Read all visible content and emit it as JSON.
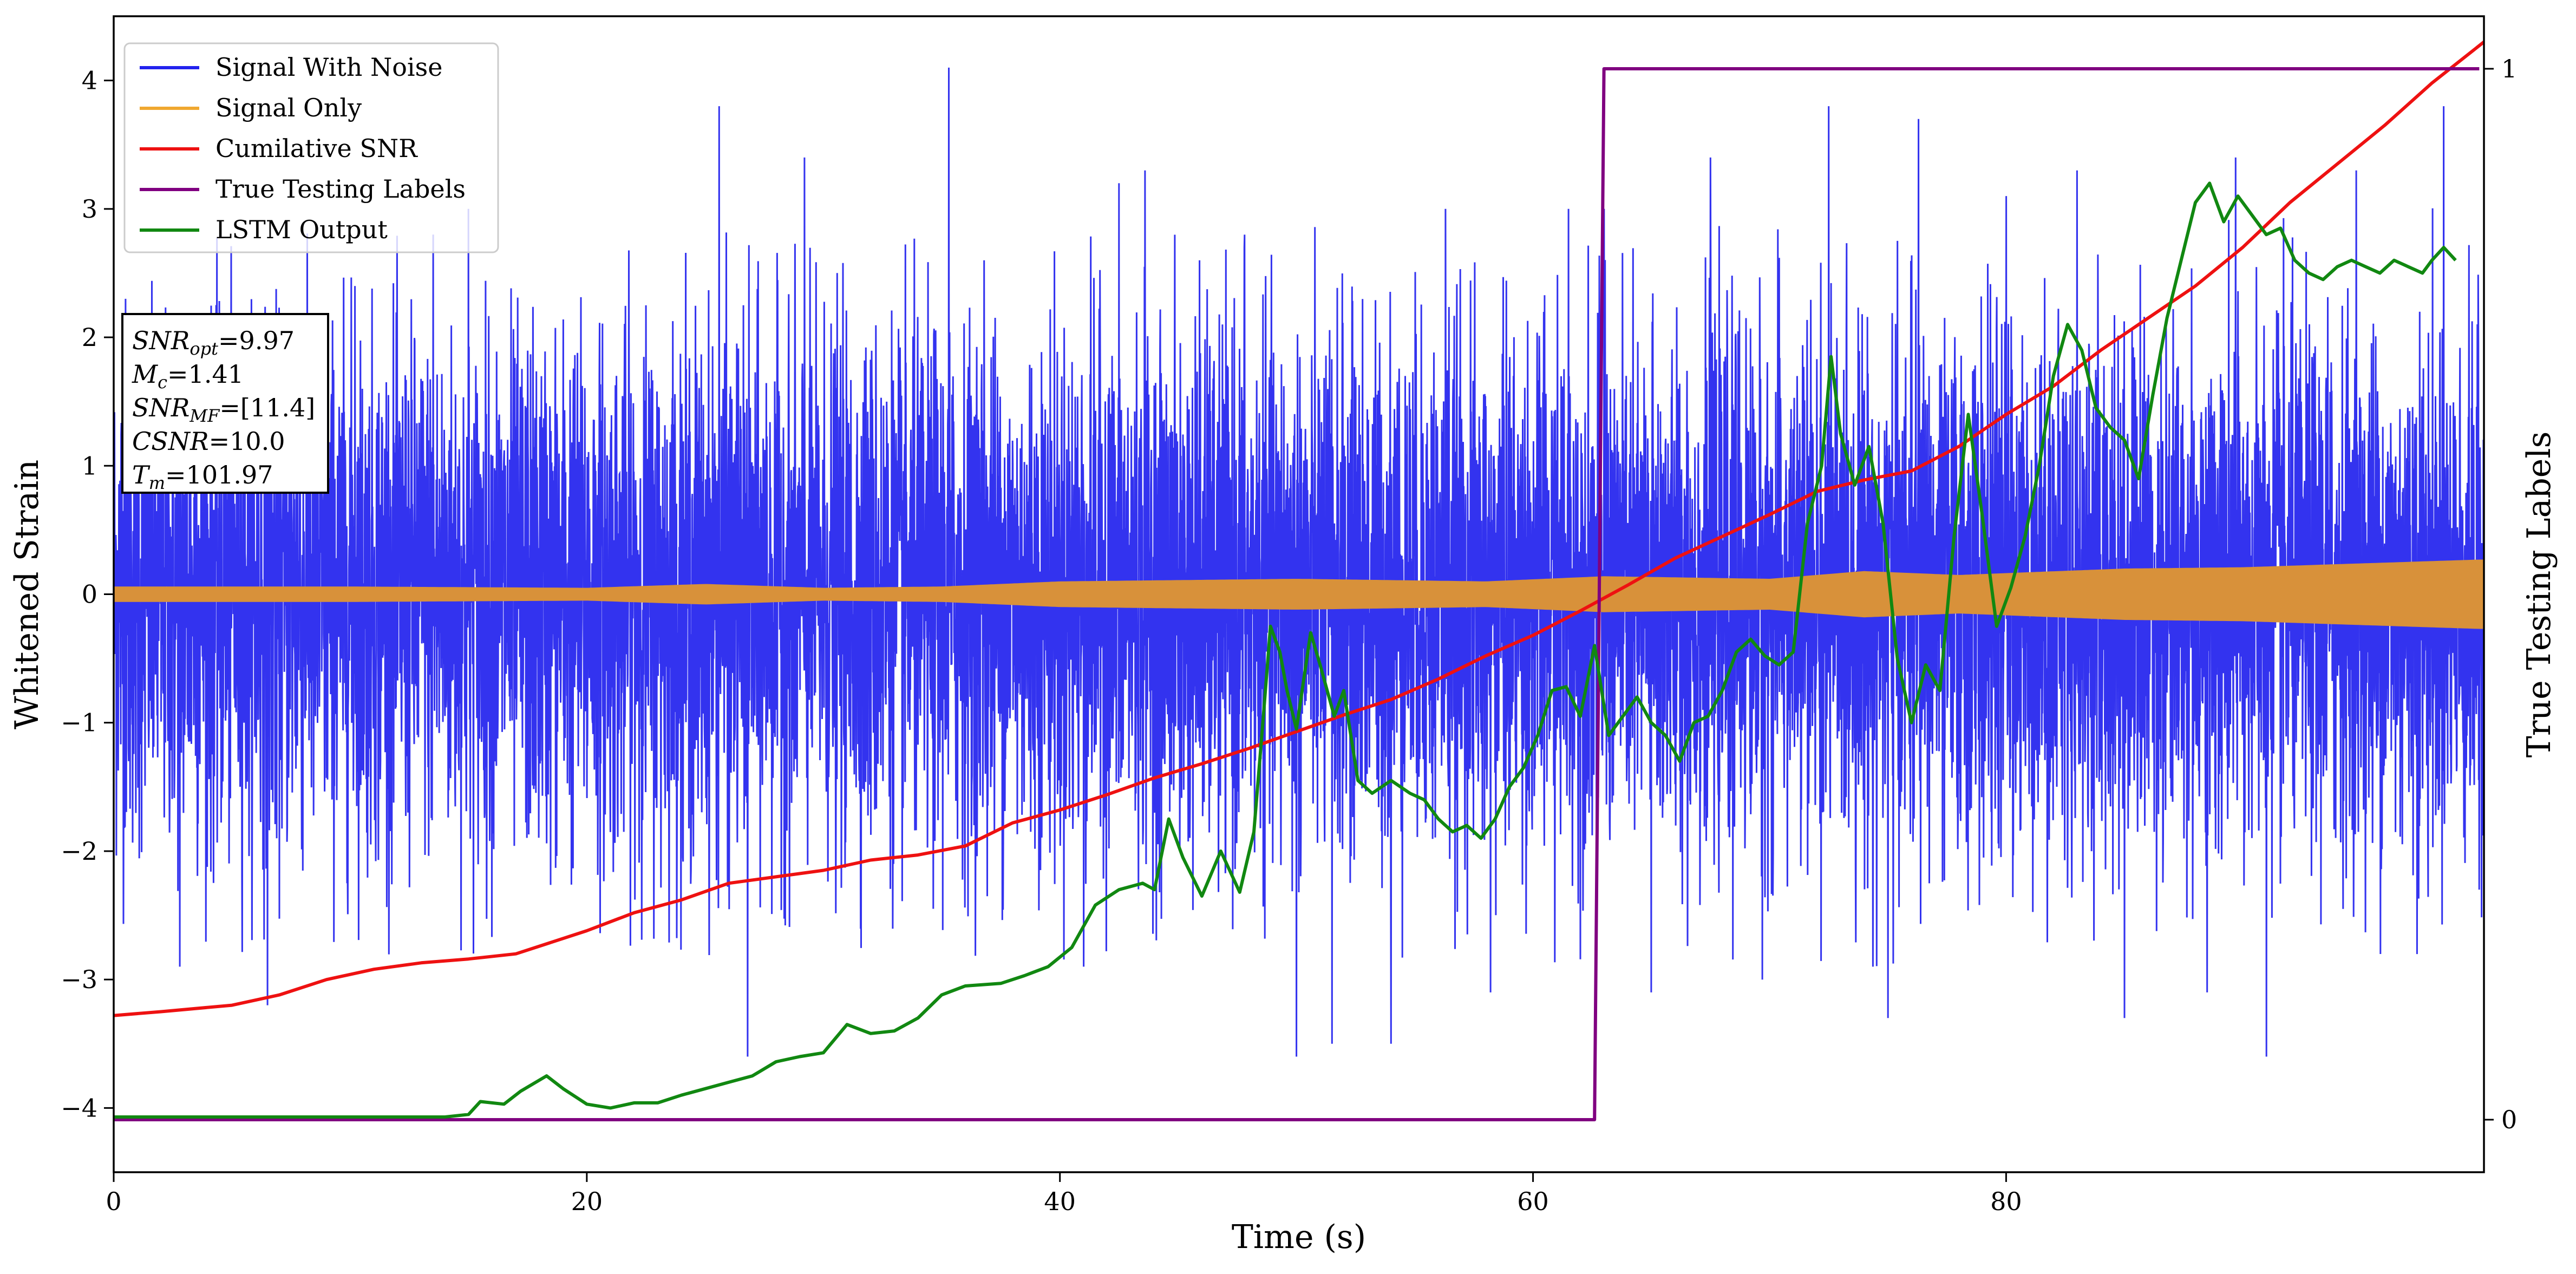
{
  "chart_data": {
    "type": "line",
    "xlabel": "Time (s)",
    "ylabel": "Whitened Strain",
    "y2label": "True Testing Labels",
    "xlim": [
      0,
      100.2
    ],
    "ylim": [
      -4.5,
      4.5
    ],
    "y2lim": [
      -0.05,
      1.05
    ],
    "xticks": [
      0,
      20,
      40,
      60,
      80
    ],
    "yticks": [
      -4,
      -3,
      -2,
      -1,
      0,
      1,
      2,
      3,
      4
    ],
    "y2ticks": [
      0,
      1
    ],
    "grid": false,
    "legend_position": "top-left",
    "series": [
      {
        "name": "Signal With Noise",
        "axis": "left",
        "color": "#2222ee",
        "kind": "noise",
        "sigma": 1.0,
        "peak_points": [
          [
            0.5,
            2.3
          ],
          [
            2.8,
            -2.9
          ],
          [
            3.5,
            2.0
          ],
          [
            6.5,
            -3.2
          ],
          [
            10.2,
            2.4
          ],
          [
            13.5,
            2.8
          ],
          [
            15.0,
            3.0
          ],
          [
            25.6,
            3.8
          ],
          [
            26.8,
            -3.6
          ],
          [
            29.2,
            3.4
          ],
          [
            35.3,
            4.1
          ],
          [
            36.8,
            2.6
          ],
          [
            41.0,
            -2.9
          ],
          [
            42.5,
            3.2
          ],
          [
            43.6,
            3.3
          ],
          [
            45.9,
            2.6
          ],
          [
            47.8,
            2.7
          ],
          [
            50.0,
            -3.6
          ],
          [
            51.5,
            -3.5
          ],
          [
            54.0,
            -3.5
          ],
          [
            56.3,
            3.0
          ],
          [
            58.2,
            -3.1
          ],
          [
            61.5,
            3.0
          ],
          [
            63.0,
            3.0
          ],
          [
            65.0,
            -3.1
          ],
          [
            67.5,
            3.4
          ],
          [
            69.7,
            -3.0
          ],
          [
            72.5,
            3.8
          ],
          [
            75.0,
            -3.3
          ],
          [
            76.3,
            3.7
          ],
          [
            80.0,
            3.1
          ],
          [
            83.0,
            3.3
          ],
          [
            85.0,
            -3.3
          ],
          [
            88.5,
            -3.1
          ],
          [
            89.7,
            3.4
          ],
          [
            91.0,
            -3.6
          ],
          [
            94.8,
            3.3
          ],
          [
            98.5,
            3.8
          ],
          [
            100.0,
            -2.3
          ]
        ]
      },
      {
        "name": "Signal Only",
        "axis": "left",
        "color": "#f0a830",
        "kind": "envelope",
        "envelope": [
          [
            0,
            0.06
          ],
          [
            10,
            0.06
          ],
          [
            20,
            0.05
          ],
          [
            25,
            0.08
          ],
          [
            30,
            0.05
          ],
          [
            35,
            0.06
          ],
          [
            40,
            0.1
          ],
          [
            50,
            0.12
          ],
          [
            58,
            0.1
          ],
          [
            63,
            0.14
          ],
          [
            70,
            0.12
          ],
          [
            74,
            0.18
          ],
          [
            78,
            0.15
          ],
          [
            85,
            0.2
          ],
          [
            90,
            0.21
          ],
          [
            95,
            0.24
          ],
          [
            100,
            0.27
          ]
        ]
      },
      {
        "name": "Cumilative SNR",
        "axis": "left",
        "color": "#ee1111",
        "kind": "line",
        "points": [
          [
            0,
            -3.28
          ],
          [
            2,
            -3.25
          ],
          [
            5,
            -3.2
          ],
          [
            7,
            -3.12
          ],
          [
            9,
            -3.0
          ],
          [
            11,
            -2.92
          ],
          [
            13,
            -2.87
          ],
          [
            15,
            -2.84
          ],
          [
            17,
            -2.8
          ],
          [
            18,
            -2.74
          ],
          [
            20,
            -2.62
          ],
          [
            22,
            -2.48
          ],
          [
            24,
            -2.38
          ],
          [
            26,
            -2.25
          ],
          [
            28,
            -2.2
          ],
          [
            30,
            -2.15
          ],
          [
            32,
            -2.07
          ],
          [
            34,
            -2.03
          ],
          [
            36,
            -1.96
          ],
          [
            38,
            -1.78
          ],
          [
            40,
            -1.68
          ],
          [
            42,
            -1.56
          ],
          [
            44,
            -1.43
          ],
          [
            46,
            -1.32
          ],
          [
            48,
            -1.2
          ],
          [
            50,
            -1.07
          ],
          [
            52,
            -0.94
          ],
          [
            54,
            -0.82
          ],
          [
            56,
            -0.66
          ],
          [
            58,
            -0.48
          ],
          [
            60,
            -0.32
          ],
          [
            62,
            -0.13
          ],
          [
            64,
            0.07
          ],
          [
            66,
            0.28
          ],
          [
            68,
            0.45
          ],
          [
            70,
            0.62
          ],
          [
            72,
            0.8
          ],
          [
            74,
            0.89
          ],
          [
            76,
            0.96
          ],
          [
            78,
            1.15
          ],
          [
            80,
            1.4
          ],
          [
            82,
            1.62
          ],
          [
            84,
            1.9
          ],
          [
            86,
            2.15
          ],
          [
            88,
            2.4
          ],
          [
            90,
            2.7
          ],
          [
            92,
            3.05
          ],
          [
            94,
            3.35
          ],
          [
            96,
            3.65
          ],
          [
            98,
            3.98
          ],
          [
            100.2,
            4.3
          ]
        ]
      },
      {
        "name": "True Testing Labels",
        "axis": "right",
        "color": "#800080",
        "kind": "line",
        "points": [
          [
            0,
            0
          ],
          [
            62.6,
            0
          ],
          [
            63.0,
            1
          ],
          [
            100.0,
            1
          ]
        ]
      },
      {
        "name": "LSTM Output",
        "axis": "left",
        "color": "#118811",
        "kind": "line",
        "points": [
          [
            0,
            -4.07
          ],
          [
            14,
            -4.07
          ],
          [
            15,
            -4.05
          ],
          [
            15.5,
            -3.95
          ],
          [
            16.5,
            -3.97
          ],
          [
            17.2,
            -3.87
          ],
          [
            18.3,
            -3.75
          ],
          [
            19.0,
            -3.85
          ],
          [
            20.0,
            -3.97
          ],
          [
            21.0,
            -4.0
          ],
          [
            22.0,
            -3.96
          ],
          [
            23.0,
            -3.96
          ],
          [
            24.0,
            -3.9
          ],
          [
            25.0,
            -3.85
          ],
          [
            26.0,
            -3.8
          ],
          [
            27.0,
            -3.75
          ],
          [
            28.0,
            -3.64
          ],
          [
            29.0,
            -3.6
          ],
          [
            30.0,
            -3.57
          ],
          [
            31.0,
            -3.35
          ],
          [
            32.0,
            -3.42
          ],
          [
            33.0,
            -3.4
          ],
          [
            34.0,
            -3.3
          ],
          [
            35.0,
            -3.12
          ],
          [
            36.0,
            -3.05
          ],
          [
            37.5,
            -3.03
          ],
          [
            38.5,
            -2.97
          ],
          [
            39.5,
            -2.9
          ],
          [
            40.5,
            -2.75
          ],
          [
            41.5,
            -2.42
          ],
          [
            42.5,
            -2.3
          ],
          [
            43.5,
            -2.25
          ],
          [
            44.0,
            -2.3
          ],
          [
            44.6,
            -1.75
          ],
          [
            45.2,
            -2.05
          ],
          [
            46.0,
            -2.35
          ],
          [
            46.8,
            -2.0
          ],
          [
            47.6,
            -2.32
          ],
          [
            48.2,
            -1.85
          ],
          [
            48.6,
            -0.95
          ],
          [
            48.9,
            -0.25
          ],
          [
            49.3,
            -0.45
          ],
          [
            49.6,
            -0.75
          ],
          [
            50.0,
            -1.05
          ],
          [
            50.6,
            -0.3
          ],
          [
            51.0,
            -0.55
          ],
          [
            51.6,
            -0.95
          ],
          [
            52.0,
            -0.75
          ],
          [
            52.6,
            -1.45
          ],
          [
            53.2,
            -1.55
          ],
          [
            54.0,
            -1.45
          ],
          [
            54.8,
            -1.55
          ],
          [
            55.4,
            -1.6
          ],
          [
            56.0,
            -1.75
          ],
          [
            56.6,
            -1.85
          ],
          [
            57.2,
            -1.8
          ],
          [
            57.8,
            -1.9
          ],
          [
            58.4,
            -1.75
          ],
          [
            59.0,
            -1.5
          ],
          [
            59.6,
            -1.35
          ],
          [
            60.2,
            -1.1
          ],
          [
            60.8,
            -0.75
          ],
          [
            61.4,
            -0.72
          ],
          [
            62.0,
            -0.95
          ],
          [
            62.6,
            -0.4
          ],
          [
            63.2,
            -1.1
          ],
          [
            63.8,
            -0.95
          ],
          [
            64.4,
            -0.8
          ],
          [
            65.0,
            -1.0
          ],
          [
            65.6,
            -1.1
          ],
          [
            66.2,
            -1.3
          ],
          [
            66.8,
            -1.0
          ],
          [
            67.4,
            -0.95
          ],
          [
            68.0,
            -0.75
          ],
          [
            68.6,
            -0.45
          ],
          [
            69.2,
            -0.35
          ],
          [
            69.8,
            -0.48
          ],
          [
            70.4,
            -0.55
          ],
          [
            71.0,
            -0.45
          ],
          [
            71.6,
            0.55
          ],
          [
            72.2,
            1.0
          ],
          [
            72.6,
            1.85
          ],
          [
            73.0,
            1.25
          ],
          [
            73.6,
            0.85
          ],
          [
            74.2,
            1.15
          ],
          [
            74.8,
            0.55
          ],
          [
            75.4,
            -0.5
          ],
          [
            76.0,
            -1.0
          ],
          [
            76.6,
            -0.55
          ],
          [
            77.2,
            -0.75
          ],
          [
            77.8,
            0.45
          ],
          [
            78.4,
            1.4
          ],
          [
            79.0,
            0.6
          ],
          [
            79.6,
            -0.25
          ],
          [
            80.2,
            0.05
          ],
          [
            80.8,
            0.45
          ],
          [
            81.4,
            1.0
          ],
          [
            82.0,
            1.7
          ],
          [
            82.6,
            2.1
          ],
          [
            83.2,
            1.9
          ],
          [
            83.8,
            1.45
          ],
          [
            84.4,
            1.3
          ],
          [
            85.0,
            1.2
          ],
          [
            85.6,
            0.9
          ],
          [
            86.2,
            1.55
          ],
          [
            86.8,
            2.15
          ],
          [
            87.4,
            2.6
          ],
          [
            88.0,
            3.05
          ],
          [
            88.6,
            3.2
          ],
          [
            89.2,
            2.9
          ],
          [
            89.8,
            3.1
          ],
          [
            90.4,
            2.95
          ],
          [
            91.0,
            2.8
          ],
          [
            91.6,
            2.85
          ],
          [
            92.2,
            2.6
          ],
          [
            92.8,
            2.5
          ],
          [
            93.4,
            2.45
          ],
          [
            94.0,
            2.55
          ],
          [
            94.6,
            2.6
          ],
          [
            95.2,
            2.55
          ],
          [
            95.8,
            2.5
          ],
          [
            96.4,
            2.6
          ],
          [
            97.0,
            2.55
          ],
          [
            97.6,
            2.5
          ],
          [
            98.0,
            2.6
          ],
          [
            98.5,
            2.7
          ],
          [
            99.0,
            2.6
          ]
        ]
      }
    ],
    "annotation_box": {
      "lines": [
        {
          "base": "SNR",
          "sub": "opt",
          "value": "=9.97"
        },
        {
          "base": "M",
          "sub": "c",
          "value": "=1.41"
        },
        {
          "base": "SNR",
          "sub": "MF",
          "value": "=[11.4]"
        },
        {
          "base": "CSNR",
          "sub": "",
          "value": "=10.0"
        },
        {
          "base": "T",
          "sub": "m",
          "value": "=101.97"
        }
      ]
    }
  }
}
